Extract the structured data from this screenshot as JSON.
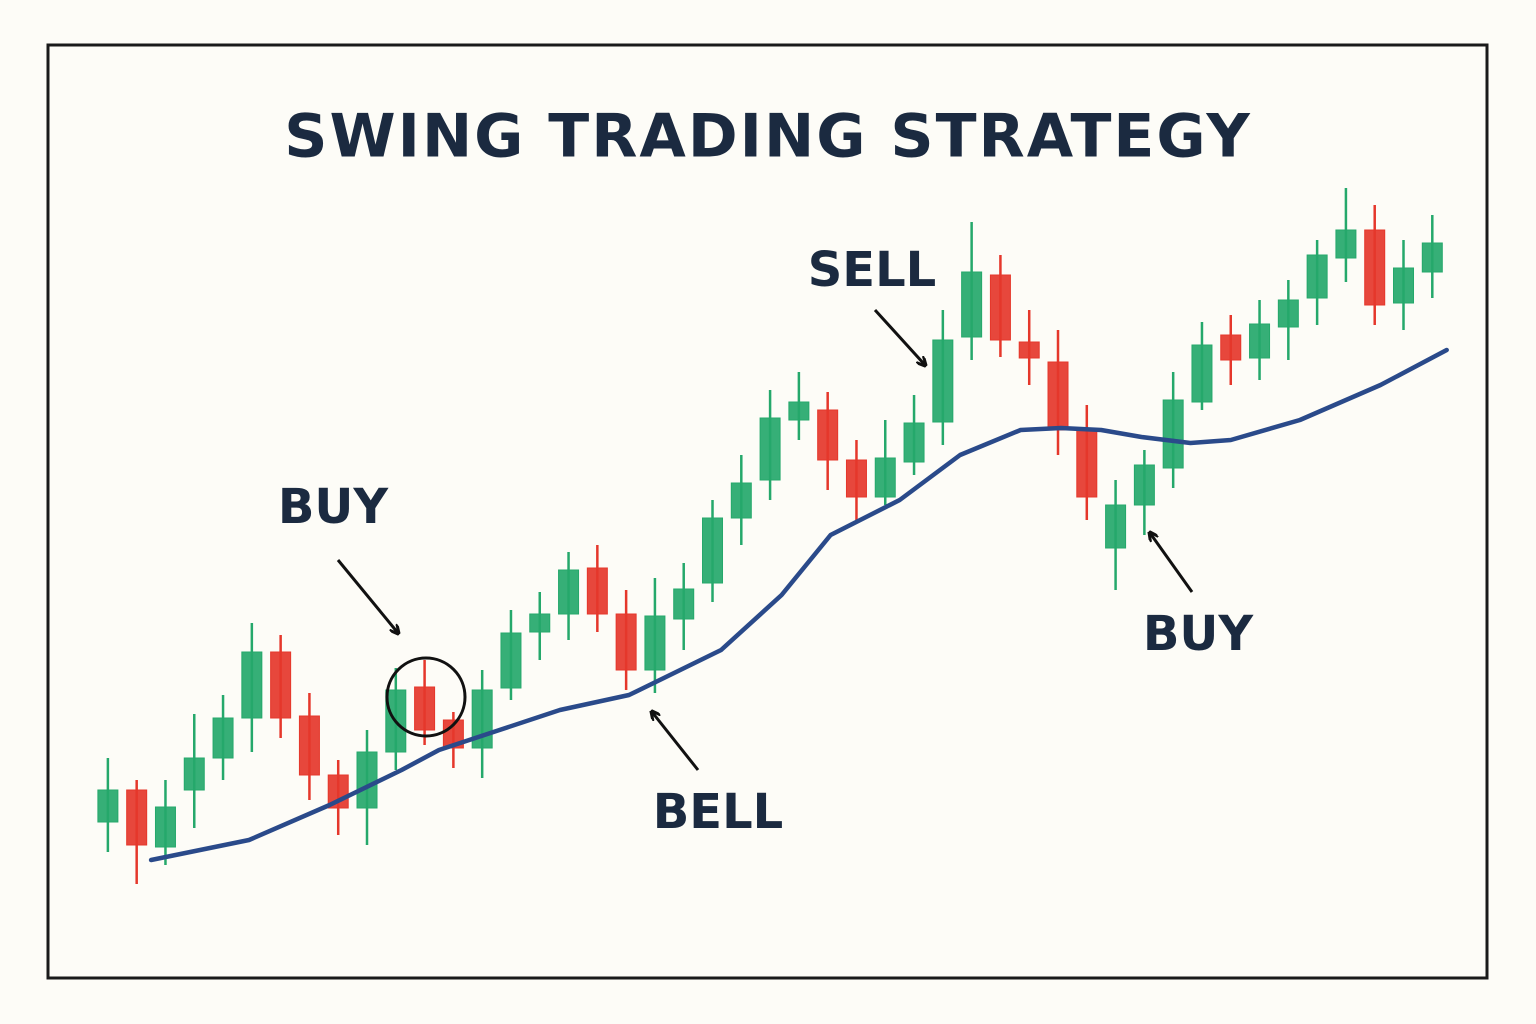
{
  "chart_data": {
    "type": "candlestick",
    "title": "SWING TRADING STRATEGY",
    "annotations": [
      "BUY",
      "SELL",
      "BELL",
      "BUY"
    ],
    "up_color": "#25a86b",
    "down_color": "#e5372b",
    "xlim": [
      -1.08,
      48.9
    ],
    "ylim": [
      0,
      933
    ],
    "x": [
      1,
      2,
      3,
      4,
      5,
      6,
      7,
      8,
      9,
      10,
      11,
      12,
      13,
      14,
      15,
      16,
      17,
      18,
      19,
      20,
      21,
      22,
      23,
      24,
      25,
      26,
      27,
      28,
      29,
      30,
      31,
      32,
      33,
      34,
      35,
      36,
      37,
      38,
      39,
      40,
      41,
      42,
      43,
      44,
      45,
      46,
      47
    ],
    "open": [
      156,
      188,
      131,
      188,
      220,
      260,
      326,
      262,
      203,
      170,
      226,
      291,
      258,
      230,
      290,
      346,
      364,
      410,
      364,
      308,
      359,
      395,
      460,
      498,
      558,
      568,
      518,
      481,
      516,
      556,
      641,
      703,
      636,
      616,
      548,
      430,
      473,
      510,
      576,
      643,
      620,
      651,
      680,
      720,
      748,
      675,
      706
    ],
    "high": [
      220,
      198,
      198,
      264,
      283,
      355,
      343,
      285,
      218,
      248,
      310,
      318,
      266,
      308,
      368,
      386,
      426,
      433,
      388,
      400,
      415,
      478,
      523,
      588,
      606,
      586,
      538,
      558,
      583,
      668,
      756,
      723,
      668,
      648,
      573,
      498,
      528,
      606,
      656,
      663,
      678,
      698,
      738,
      790,
      773,
      738,
      763
    ],
    "low": [
      126,
      94,
      113,
      150,
      198,
      226,
      240,
      178,
      143,
      133,
      208,
      233,
      210,
      200,
      278,
      318,
      338,
      346,
      288,
      285,
      328,
      376,
      433,
      478,
      538,
      488,
      456,
      473,
      503,
      533,
      618,
      621,
      593,
      523,
      458,
      388,
      443,
      490,
      568,
      593,
      598,
      618,
      653,
      696,
      653,
      648,
      680
    ],
    "close": [
      188,
      133,
      171,
      220,
      260,
      326,
      260,
      203,
      170,
      226,
      288,
      248,
      230,
      288,
      345,
      364,
      408,
      364,
      308,
      362,
      389,
      460,
      495,
      560,
      576,
      518,
      481,
      520,
      555,
      638,
      706,
      638,
      620,
      548,
      481,
      473,
      513,
      578,
      633,
      618,
      654,
      678,
      723,
      748,
      673,
      710,
      735
    ],
    "moving_average": {
      "color": "#2a4a8a",
      "x": [
        2.5,
        5.9,
        8.7,
        11.2,
        12.5,
        14.6,
        16.7,
        19.1,
        22.3,
        24.4,
        26.1,
        28.5,
        30.6,
        32.7,
        34.1,
        35.5,
        36.9,
        38.6,
        40.0,
        42.4,
        45.2,
        47.5
      ],
      "values": [
        118,
        138,
        173,
        208,
        228,
        248,
        268,
        283,
        328,
        383,
        443,
        478,
        523,
        548,
        550,
        548,
        541,
        535,
        538,
        558,
        593,
        628
      ]
    }
  }
}
